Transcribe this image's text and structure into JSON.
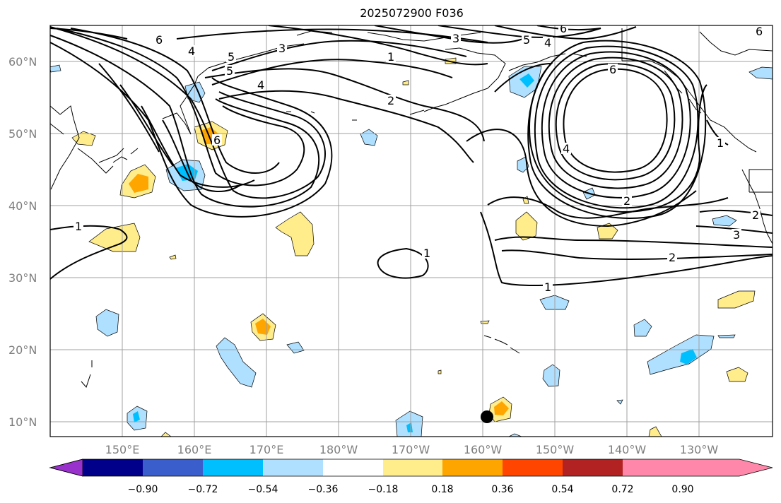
{
  "title": "2025072900 F036",
  "axes": {
    "lat_labels": [
      "60°N",
      "50°N",
      "40°N",
      "30°N",
      "20°N",
      "10°N"
    ],
    "lon_labels": [
      "150°E",
      "160°E",
      "170°E",
      "180°W",
      "170°W",
      "160°W",
      "150°W",
      "140°W",
      "130°W"
    ]
  },
  "colorbar": {
    "tick_labels": [
      "−0.90",
      "−0.72",
      "−0.54",
      "−0.36",
      "−0.18",
      "0.18",
      "0.36",
      "0.54",
      "0.72",
      "0.90"
    ],
    "colors": [
      "#9932cc",
      "#00008b",
      "#3a5fcd",
      "#00bfff",
      "#b0e0ff",
      "#ffffff",
      "#ffec8b",
      "#ffa500",
      "#ff4500",
      "#b22222",
      "#ff88aa"
    ]
  },
  "contour_labels": [
    "6",
    "4",
    "5",
    "3",
    "6",
    "5",
    "4",
    "3",
    "1",
    "2",
    "4",
    "6",
    "5",
    "6",
    "4",
    "2",
    "1",
    "2",
    "1",
    "2",
    "1",
    "3",
    "1",
    "6"
  ],
  "colors": {
    "negative_fill": "#b0e0ff",
    "negative_strong": "#00bfff",
    "positive_fill": "#ffec8b",
    "positive_strong": "#ffa500",
    "grid": "#a0a0a0"
  }
}
